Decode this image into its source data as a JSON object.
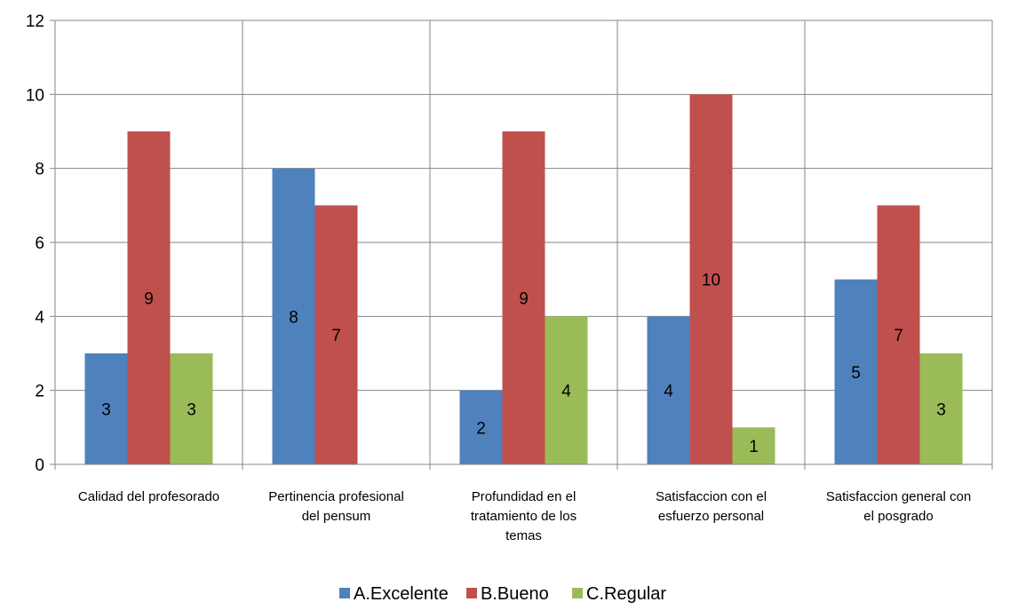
{
  "chart_data": {
    "type": "bar",
    "categories": [
      [
        "Calidad del profesorado"
      ],
      [
        "Pertinencia profesional",
        "del pensum"
      ],
      [
        "Profundidad en el",
        "tratamiento de los",
        "temas"
      ],
      [
        "Satisfaccion con el",
        "esfuerzo personal"
      ],
      [
        "Satisfaccion general con",
        "el posgrado"
      ]
    ],
    "series": [
      {
        "name": "A.Excelente",
        "color": "#4F81BD",
        "values": [
          3,
          8,
          2,
          4,
          5
        ]
      },
      {
        "name": "B.Bueno",
        "color": "#C0504D",
        "values": [
          9,
          7,
          9,
          10,
          7
        ]
      },
      {
        "name": "C.Regular",
        "color": "#9BBB59",
        "values": [
          3,
          0,
          4,
          1,
          3
        ]
      }
    ],
    "ylim": [
      0,
      12
    ],
    "yticks": [
      0,
      2,
      4,
      6,
      8,
      10,
      12
    ],
    "grid": true,
    "legend": "bottom",
    "data_labels": true,
    "title": "",
    "xlabel": "",
    "ylabel": ""
  }
}
